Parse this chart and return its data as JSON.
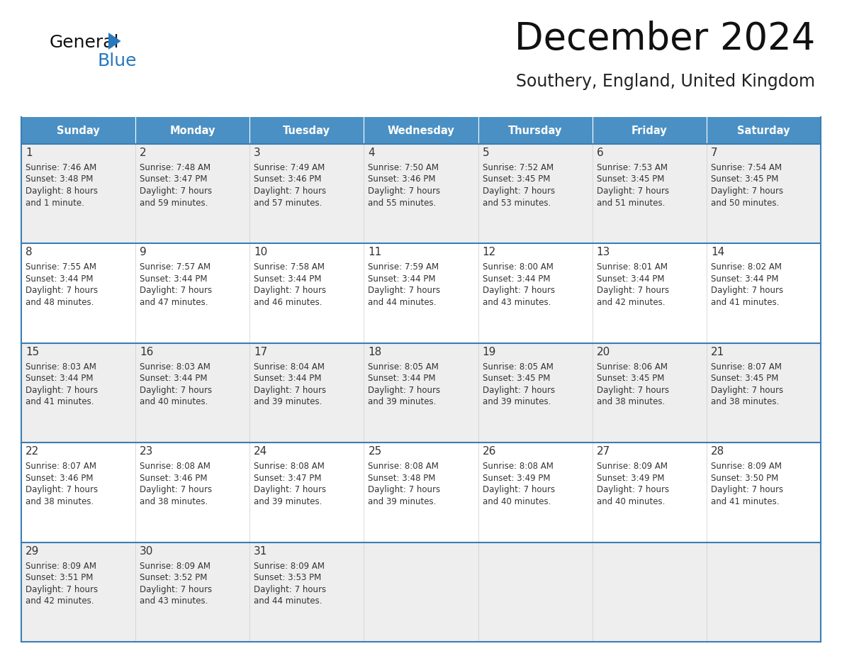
{
  "title": "December 2024",
  "subtitle": "Southery, England, United Kingdom",
  "header_color": "#4a90c4",
  "header_text_color": "#ffffff",
  "row_bg_even": "#eeeeee",
  "row_bg_odd": "#ffffff",
  "border_color": "#3a7db8",
  "text_color": "#333333",
  "days_of_week": [
    "Sunday",
    "Monday",
    "Tuesday",
    "Wednesday",
    "Thursday",
    "Friday",
    "Saturday"
  ],
  "weeks": [
    [
      {
        "day": "1",
        "sunrise": "7:46 AM",
        "sunset": "3:48 PM",
        "daylight1": "8 hours",
        "daylight2": "and 1 minute."
      },
      {
        "day": "2",
        "sunrise": "7:48 AM",
        "sunset": "3:47 PM",
        "daylight1": "7 hours",
        "daylight2": "and 59 minutes."
      },
      {
        "day": "3",
        "sunrise": "7:49 AM",
        "sunset": "3:46 PM",
        "daylight1": "7 hours",
        "daylight2": "and 57 minutes."
      },
      {
        "day": "4",
        "sunrise": "7:50 AM",
        "sunset": "3:46 PM",
        "daylight1": "7 hours",
        "daylight2": "and 55 minutes."
      },
      {
        "day": "5",
        "sunrise": "7:52 AM",
        "sunset": "3:45 PM",
        "daylight1": "7 hours",
        "daylight2": "and 53 minutes."
      },
      {
        "day": "6",
        "sunrise": "7:53 AM",
        "sunset": "3:45 PM",
        "daylight1": "7 hours",
        "daylight2": "and 51 minutes."
      },
      {
        "day": "7",
        "sunrise": "7:54 AM",
        "sunset": "3:45 PM",
        "daylight1": "7 hours",
        "daylight2": "and 50 minutes."
      }
    ],
    [
      {
        "day": "8",
        "sunrise": "7:55 AM",
        "sunset": "3:44 PM",
        "daylight1": "7 hours",
        "daylight2": "and 48 minutes."
      },
      {
        "day": "9",
        "sunrise": "7:57 AM",
        "sunset": "3:44 PM",
        "daylight1": "7 hours",
        "daylight2": "and 47 minutes."
      },
      {
        "day": "10",
        "sunrise": "7:58 AM",
        "sunset": "3:44 PM",
        "daylight1": "7 hours",
        "daylight2": "and 46 minutes."
      },
      {
        "day": "11",
        "sunrise": "7:59 AM",
        "sunset": "3:44 PM",
        "daylight1": "7 hours",
        "daylight2": "and 44 minutes."
      },
      {
        "day": "12",
        "sunrise": "8:00 AM",
        "sunset": "3:44 PM",
        "daylight1": "7 hours",
        "daylight2": "and 43 minutes."
      },
      {
        "day": "13",
        "sunrise": "8:01 AM",
        "sunset": "3:44 PM",
        "daylight1": "7 hours",
        "daylight2": "and 42 minutes."
      },
      {
        "day": "14",
        "sunrise": "8:02 AM",
        "sunset": "3:44 PM",
        "daylight1": "7 hours",
        "daylight2": "and 41 minutes."
      }
    ],
    [
      {
        "day": "15",
        "sunrise": "8:03 AM",
        "sunset": "3:44 PM",
        "daylight1": "7 hours",
        "daylight2": "and 41 minutes."
      },
      {
        "day": "16",
        "sunrise": "8:03 AM",
        "sunset": "3:44 PM",
        "daylight1": "7 hours",
        "daylight2": "and 40 minutes."
      },
      {
        "day": "17",
        "sunrise": "8:04 AM",
        "sunset": "3:44 PM",
        "daylight1": "7 hours",
        "daylight2": "and 39 minutes."
      },
      {
        "day": "18",
        "sunrise": "8:05 AM",
        "sunset": "3:44 PM",
        "daylight1": "7 hours",
        "daylight2": "and 39 minutes."
      },
      {
        "day": "19",
        "sunrise": "8:05 AM",
        "sunset": "3:45 PM",
        "daylight1": "7 hours",
        "daylight2": "and 39 minutes."
      },
      {
        "day": "20",
        "sunrise": "8:06 AM",
        "sunset": "3:45 PM",
        "daylight1": "7 hours",
        "daylight2": "and 38 minutes."
      },
      {
        "day": "21",
        "sunrise": "8:07 AM",
        "sunset": "3:45 PM",
        "daylight1": "7 hours",
        "daylight2": "and 38 minutes."
      }
    ],
    [
      {
        "day": "22",
        "sunrise": "8:07 AM",
        "sunset": "3:46 PM",
        "daylight1": "7 hours",
        "daylight2": "and 38 minutes."
      },
      {
        "day": "23",
        "sunrise": "8:08 AM",
        "sunset": "3:46 PM",
        "daylight1": "7 hours",
        "daylight2": "and 38 minutes."
      },
      {
        "day": "24",
        "sunrise": "8:08 AM",
        "sunset": "3:47 PM",
        "daylight1": "7 hours",
        "daylight2": "and 39 minutes."
      },
      {
        "day": "25",
        "sunrise": "8:08 AM",
        "sunset": "3:48 PM",
        "daylight1": "7 hours",
        "daylight2": "and 39 minutes."
      },
      {
        "day": "26",
        "sunrise": "8:08 AM",
        "sunset": "3:49 PM",
        "daylight1": "7 hours",
        "daylight2": "and 40 minutes."
      },
      {
        "day": "27",
        "sunrise": "8:09 AM",
        "sunset": "3:49 PM",
        "daylight1": "7 hours",
        "daylight2": "and 40 minutes."
      },
      {
        "day": "28",
        "sunrise": "8:09 AM",
        "sunset": "3:50 PM",
        "daylight1": "7 hours",
        "daylight2": "and 41 minutes."
      }
    ],
    [
      {
        "day": "29",
        "sunrise": "8:09 AM",
        "sunset": "3:51 PM",
        "daylight1": "7 hours",
        "daylight2": "and 42 minutes."
      },
      {
        "day": "30",
        "sunrise": "8:09 AM",
        "sunset": "3:52 PM",
        "daylight1": "7 hours",
        "daylight2": "and 43 minutes."
      },
      {
        "day": "31",
        "sunrise": "8:09 AM",
        "sunset": "3:53 PM",
        "daylight1": "7 hours",
        "daylight2": "and 44 minutes."
      },
      null,
      null,
      null,
      null
    ]
  ]
}
